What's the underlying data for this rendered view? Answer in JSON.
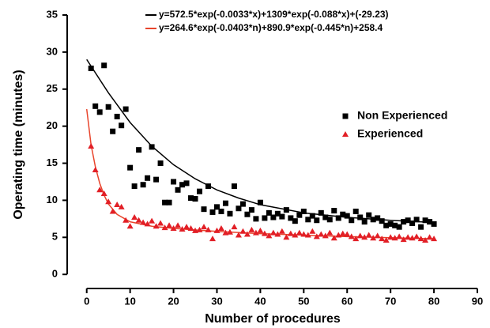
{
  "chart_data": {
    "type": "scatter",
    "x_label": "Number of procedures",
    "y_label": "Operating time (minutes)",
    "xlim": [
      -4.5,
      90
    ],
    "ylim": [
      -1.9,
      35
    ],
    "xticks": [
      0,
      10,
      20,
      30,
      40,
      50,
      60,
      70,
      80,
      90
    ],
    "yticks": [
      0,
      5,
      10,
      15,
      20,
      25,
      30,
      35
    ],
    "series": [
      {
        "name": "y=572.5*exp(-0.0033*x)+1309*exp(-0.088*x)+(-29.23)",
        "color": "#000000",
        "kind": "line",
        "x": [
          0,
          5,
          10,
          15,
          20,
          25,
          30,
          35,
          40,
          50,
          60,
          70,
          80
        ],
        "values": [
          29,
          24.5,
          20.5,
          17.3,
          14.8,
          12.9,
          11.4,
          10.3,
          9.4,
          8.3,
          7.7,
          7.3,
          7.0
        ]
      },
      {
        "name": "y=264.6*exp(-0.0403*n)+890.9*exp(-0.445*n)+258.4",
        "color": "#e8452c",
        "kind": "line",
        "x": [
          0,
          1,
          2,
          3,
          4,
          5,
          7,
          10,
          15,
          20,
          30,
          40,
          50,
          60,
          70,
          80
        ],
        "values": [
          22.3,
          17.5,
          14.5,
          12.3,
          10.7,
          9.5,
          8.1,
          7.1,
          6.5,
          6.2,
          5.8,
          5.5,
          5.3,
          5.1,
          4.95,
          4.8
        ]
      },
      {
        "name": "Non Experienced",
        "color": "#000000",
        "kind": "points",
        "marker": "square",
        "x": [
          1,
          2,
          3,
          4,
          5,
          6,
          7,
          8,
          9,
          10,
          11,
          12,
          13,
          14,
          15,
          16,
          17,
          18,
          19,
          20,
          21,
          22,
          23,
          24,
          25,
          26,
          27,
          28,
          29,
          30,
          31,
          32,
          33,
          34,
          35,
          36,
          37,
          38,
          39,
          40,
          41,
          42,
          43,
          44,
          45,
          46,
          47,
          48,
          49,
          50,
          51,
          52,
          53,
          54,
          55,
          56,
          57,
          58,
          59,
          60,
          61,
          62,
          63,
          64,
          65,
          66,
          67,
          68,
          69,
          70,
          71,
          72,
          73,
          74,
          75,
          76,
          77,
          78,
          79,
          80
        ],
        "values": [
          27.8,
          22.7,
          21.9,
          28.2,
          22.6,
          19.3,
          21.3,
          20.1,
          22.3,
          14.4,
          11.9,
          16.8,
          12.1,
          13,
          17.2,
          12.8,
          15,
          9.7,
          9.7,
          12.5,
          11.4,
          12.1,
          12.3,
          10.3,
          10.2,
          11.2,
          8.8,
          11.9,
          8.4,
          9.1,
          8.5,
          9.6,
          8.2,
          11.9,
          8.9,
          9.5,
          8.1,
          8.7,
          7.5,
          9.7,
          7.6,
          8.3,
          7.7,
          8.2,
          7.8,
          8.7,
          7.6,
          7.2,
          8,
          8.5,
          7.4,
          7.9,
          7.3,
          8.3,
          7.7,
          7.4,
          8.6,
          7.6,
          8.1,
          7.9,
          7.3,
          8.5,
          7.7,
          7.1,
          8,
          7.4,
          7.6,
          7.2,
          6.6,
          6.8,
          6.6,
          6.4,
          7.1,
          7.3,
          6.9,
          7.4,
          6.4,
          7.3,
          7.1,
          6.8
        ]
      },
      {
        "name": "Experienced",
        "color": "#e21f26",
        "kind": "points",
        "marker": "triangle",
        "x": [
          1,
          2,
          3,
          4,
          5,
          6,
          7,
          8,
          9,
          10,
          11,
          12,
          13,
          14,
          15,
          16,
          17,
          18,
          19,
          20,
          21,
          22,
          23,
          24,
          25,
          26,
          27,
          28,
          29,
          30,
          31,
          32,
          33,
          34,
          35,
          36,
          37,
          38,
          39,
          40,
          41,
          42,
          43,
          44,
          45,
          46,
          47,
          48,
          49,
          50,
          51,
          52,
          53,
          54,
          55,
          56,
          57,
          58,
          59,
          60,
          61,
          62,
          63,
          64,
          65,
          66,
          67,
          68,
          69,
          70,
          71,
          72,
          73,
          74,
          75,
          76,
          77,
          78,
          79,
          80
        ],
        "values": [
          17.3,
          14.1,
          11.4,
          10.9,
          9.8,
          8.5,
          9.4,
          9.1,
          7.3,
          6.5,
          7.7,
          7.3,
          7.0,
          6.8,
          7.2,
          6.5,
          6.9,
          6.3,
          6.6,
          6.2,
          6.6,
          6.1,
          6.4,
          6.2,
          5.9,
          6.0,
          6.4,
          6.0,
          4.8,
          5.9,
          6.2,
          5.6,
          5.7,
          6.4,
          5.3,
          5.8,
          5.4,
          6.0,
          5.6,
          5.9,
          5.5,
          5.2,
          5.6,
          5.4,
          5.8,
          5.0,
          5.5,
          5.3,
          5.6,
          5.4,
          5.3,
          5.8,
          5.1,
          5.4,
          5.2,
          5.6,
          4.9,
          5.3,
          5.5,
          5.4,
          5.1,
          4.8,
          5.2,
          5.0,
          5.3,
          4.9,
          5.2,
          4.8,
          4.6,
          5.0,
          4.9,
          5.1,
          4.7,
          5.0,
          4.9,
          5.1,
          4.8,
          4.6,
          5.0,
          4.8
        ]
      }
    ]
  }
}
